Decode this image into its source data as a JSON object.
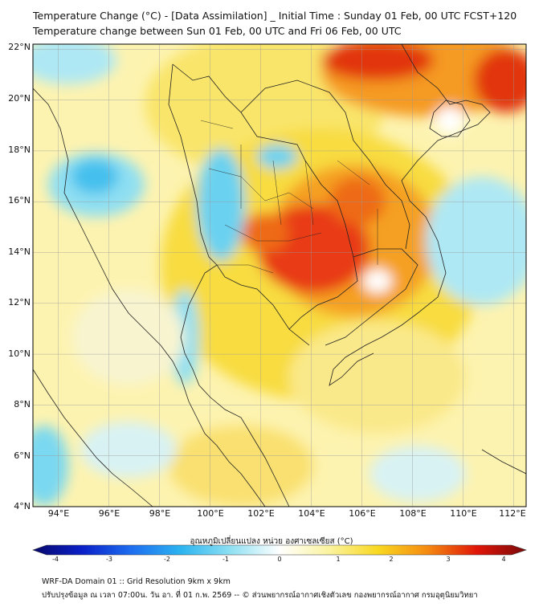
{
  "title_line1": "Temperature Change (°C) - [Data Assimilation] _ Initial Time : Sunday 01 Feb, 00 UTC FCST+120",
  "title_line2": "Temperature change between Sun 01 Feb, 00 UTC and Fri 06 Feb, 00 UTC",
  "map": {
    "lat_range": [
      4,
      22.2
    ],
    "lon_range": [
      93,
      112.5
    ],
    "lat_labels": [
      "22°N",
      "20°N",
      "18°N",
      "16°N",
      "14°N",
      "12°N",
      "10°N",
      "8°N",
      "6°N",
      "4°N"
    ],
    "lon_labels": [
      "94°E",
      "96°E",
      "98°E",
      "100°E",
      "102°E",
      "104°E",
      "106°E",
      "108°E",
      "110°E",
      "112°E"
    ]
  },
  "colorbar": {
    "title": "อุณหภูมิเปลี่ยนแปลง หน่วย องศาเซลเซียส (°C)",
    "min": -4,
    "max": 4,
    "ticks": [
      "-4",
      "-3",
      "-2",
      "-1",
      "0",
      "1",
      "2",
      "3",
      "4"
    ],
    "colors": [
      "#08086b",
      "#0a20c8",
      "#1e6ef0",
      "#2cb4f0",
      "#8ee0f2",
      "#ffffff",
      "#fbf3a0",
      "#f8d820",
      "#f58a10",
      "#e01508",
      "#7a0a0a"
    ]
  },
  "footer_line1": "WRF-DA Domain 01 :: Grid Resolution 9km x 9km",
  "footer_line2": "ปรับปรุงข้อมูล ณ เวลา 07:00น. วัน อา. ที่ 01 ก.พ. 2569 -- © ส่วนพยากรณ์อากาศเชิงตัวเลข กองพยากรณ์อากาศ กรมอุตุนิยมวิทยา"
}
